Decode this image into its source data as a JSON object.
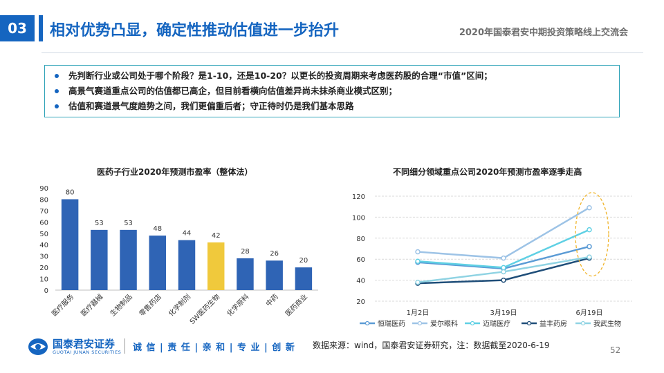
{
  "header": {
    "section_number": "03",
    "title": "相对优势凸显，确定性推动估值进一步抬升",
    "event": "2020年国泰君安中期投资策略线上交流会"
  },
  "bullets": [
    "先判断行业或公司处于哪个阶段？是1-10，还是10-20？以更长的投资周期来考虑医药股的合理“市值”区间；",
    "高景气赛道重点公司的估值都已高企，但目前看横向估值差异尚未抹杀商业模式区别；",
    "估值和赛道景气度趋势之间，我们更偏重后者；守正待时仍是我们基本思路"
  ],
  "chart_data": [
    {
      "type": "bar",
      "title": "医药子行业2020年预测市盈率（整体法）",
      "categories": [
        "医疗服务",
        "医疗器械",
        "生物制品",
        "零售药店",
        "化学制剂",
        "SW医药生物",
        "化学原料",
        "中药",
        "医药商业"
      ],
      "values": [
        80,
        53,
        53,
        48,
        44,
        42,
        28,
        26,
        20
      ],
      "ylim": [
        0,
        90
      ],
      "yticks": [
        0,
        10,
        20,
        30,
        40,
        50,
        60,
        70,
        80,
        90
      ],
      "highlight_category": "SW医药生物",
      "colors": {
        "bar": "#2f64b5",
        "highlight": "#f0c93c"
      }
    },
    {
      "type": "line",
      "title": "不同细分领域重点公司2020年预测市盈率逐季走高",
      "x": [
        "1月2日",
        "3月19日",
        "6月19日"
      ],
      "ylim": [
        20,
        120
      ],
      "yticks": [
        20,
        40,
        60,
        80,
        100,
        120
      ],
      "grid": true,
      "legend": "bottom",
      "series": [
        {
          "name": "恒瑞医药",
          "values": [
            57,
            51,
            72
          ],
          "color": "#5b9bd5"
        },
        {
          "name": "爱尔眼科",
          "values": [
            67,
            61,
            109
          ],
          "color": "#9dc3e6"
        },
        {
          "name": "迈瑞医疗",
          "values": [
            58,
            52,
            88
          ],
          "color": "#5fd0e4"
        },
        {
          "name": "益丰药房",
          "values": [
            37,
            40,
            61
          ],
          "color": "#1f4e79"
        },
        {
          "name": "我武生物",
          "values": [
            38,
            48,
            62
          ],
          "color": "#8fd3e3"
        }
      ]
    }
  ],
  "footer": {
    "logo_cn": "国泰君安证券",
    "logo_en": "GUOTAI JUNAN SECURITIES",
    "slogan": "诚 信 | 责 任 | 亲 和 | 专 业 | 创 新",
    "source": "数据来源：wind，国泰君安证券研究，注：数据截至2020-6-19",
    "page_number": "52"
  }
}
